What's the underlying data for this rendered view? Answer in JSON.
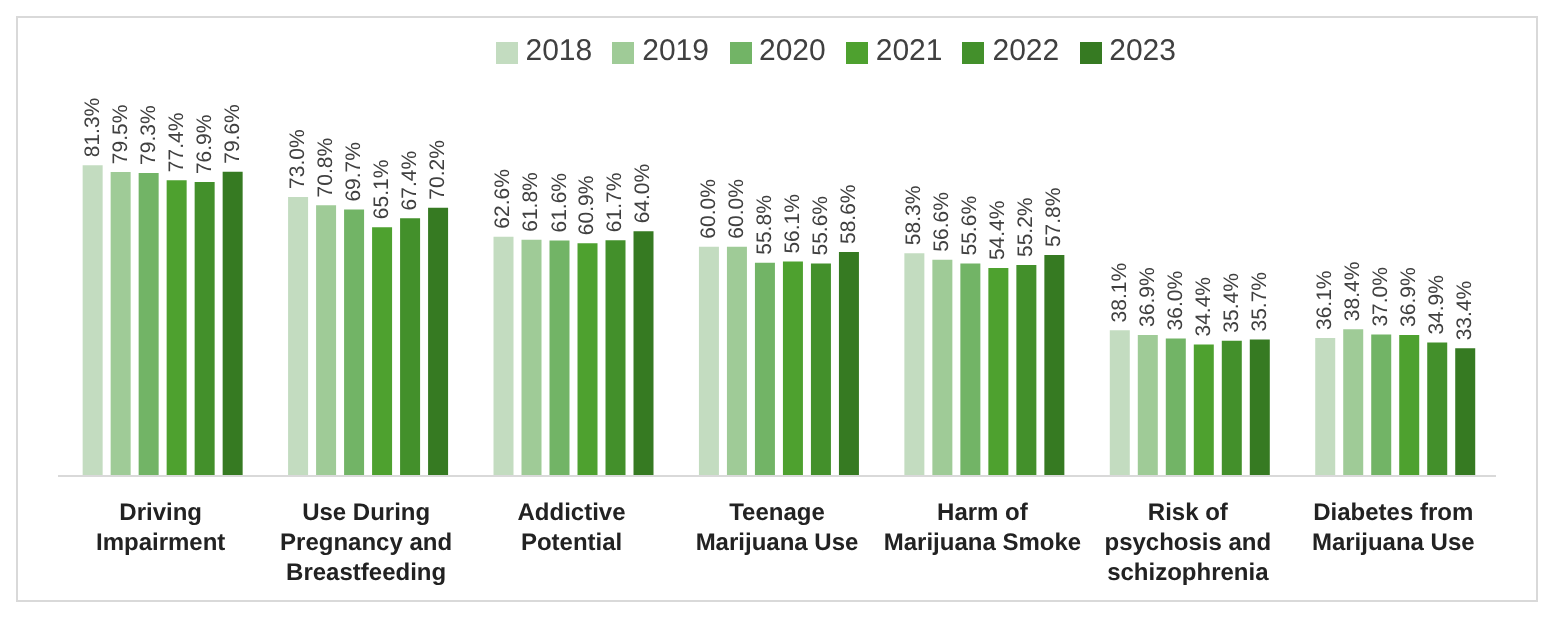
{
  "chart_data": {
    "type": "bar",
    "categories": [
      "Driving Impairment",
      "Use During Pregnancy and Breastfeeding",
      "Addictive Potential",
      "Teenage Marijuana Use",
      "Harm of Marijuana Smoke",
      "Risk of psychosis and schizophrenia",
      "Diabetes from Marijuana Use"
    ],
    "series": [
      {
        "name": "2018",
        "color": "#c3dcc0",
        "values": [
          81.3,
          73.0,
          62.6,
          60.0,
          58.3,
          38.1,
          36.1
        ],
        "value_labels": [
          "81.3%",
          "73.0%",
          "62.6%",
          "60.0%",
          "58.3%",
          "38.1%",
          "36.1%"
        ]
      },
      {
        "name": "2019",
        "color": "#9fcb97",
        "values": [
          79.5,
          70.8,
          61.8,
          60.0,
          56.6,
          36.9,
          38.4
        ],
        "value_labels": [
          "79.5%",
          "70.8%",
          "61.8%",
          "60.0%",
          "56.6%",
          "36.9%",
          "38.4%"
        ]
      },
      {
        "name": "2020",
        "color": "#72b466",
        "values": [
          79.3,
          69.7,
          61.6,
          55.8,
          55.6,
          36.0,
          37.0
        ],
        "value_labels": [
          "79.3%",
          "69.7%",
          "61.6%",
          "55.8%",
          "55.6%",
          "36.0%",
          "37.0%"
        ]
      },
      {
        "name": "2021",
        "color": "#4ea12f",
        "values": [
          77.4,
          65.1,
          60.9,
          56.1,
          54.4,
          34.4,
          36.9
        ],
        "value_labels": [
          "77.4%",
          "65.1%",
          "60.9%",
          "56.1%",
          "54.4%",
          "34.4%",
          "36.9%"
        ]
      },
      {
        "name": "2022",
        "color": "#43902b",
        "values": [
          76.9,
          67.4,
          61.7,
          55.6,
          55.2,
          35.4,
          34.9
        ],
        "value_labels": [
          "76.9%",
          "67.4%",
          "61.7%",
          "55.6%",
          "55.2%",
          "35.4%",
          "34.9%"
        ]
      },
      {
        "name": "2023",
        "color": "#367a22",
        "values": [
          79.6,
          70.2,
          64.0,
          58.6,
          57.8,
          35.7,
          33.4
        ],
        "value_labels": [
          "79.6%",
          "70.2%",
          "64.0%",
          "58.6%",
          "57.8%",
          "35.7%",
          "33.4%"
        ]
      }
    ],
    "legend": "top right",
    "grid": false
  }
}
